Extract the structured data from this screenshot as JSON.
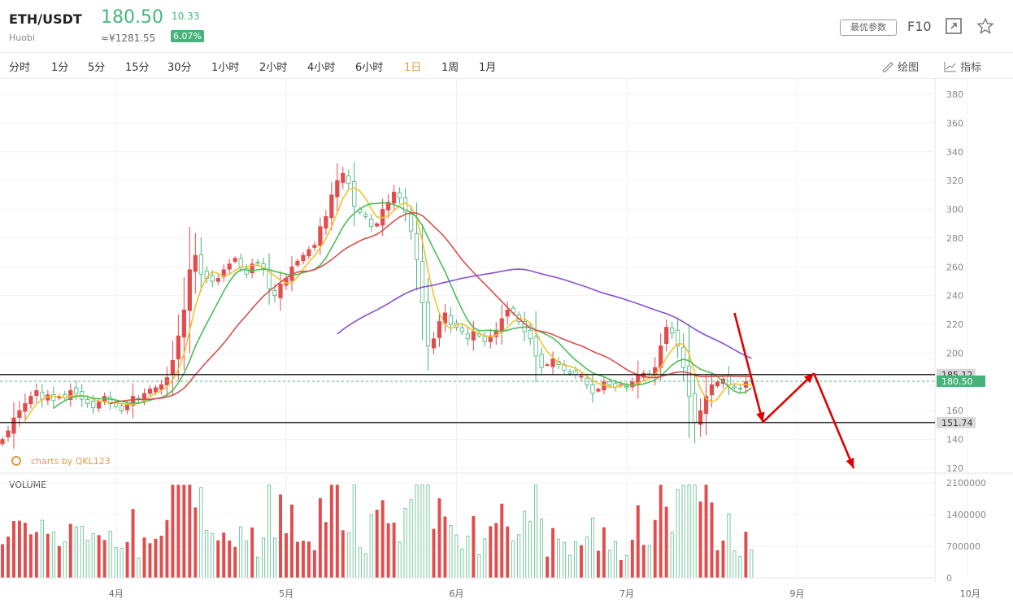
{
  "header": {
    "symbol": "ETH/USDT",
    "exchange": "Huobi",
    "price": "180.50",
    "cny_price": "≈¥1281.55",
    "change": "10.33",
    "change_pct": "6.07%",
    "param_button": "最优参数",
    "f10": "F10"
  },
  "tabs": [
    "分时",
    "1分",
    "5分",
    "15分",
    "30分",
    "1小时",
    "2小时",
    "4小时",
    "6小时",
    "1日",
    "1周",
    "1月"
  ],
  "active_tab": "1日",
  "tools": {
    "draw": "绘图",
    "indicator": "指标"
  },
  "colors": {
    "up": "#e24c4c",
    "down": "#43b37a",
    "ma5": "#f2c230",
    "ma10": "#4cbf5a",
    "ma20": "#d94f4f",
    "ma60": "#8a4fd0",
    "arrow": "#e00000"
  },
  "chart_data": {
    "type": "candlestick",
    "watermark": "charts by QKL123",
    "price_axis": {
      "min": 120,
      "max": 380,
      "ticks": [
        120,
        140,
        160,
        180,
        200,
        220,
        240,
        260,
        280,
        300,
        320,
        340,
        360,
        380
      ]
    },
    "price_labels": [
      "120",
      "140",
      "160",
      "180",
      "200",
      "220",
      "240",
      "260",
      "280",
      "300",
      "320",
      "340",
      "360",
      "380"
    ],
    "x_axis": {
      "labels": [
        "4月",
        "5月",
        "6月",
        "7月",
        "9月",
        "10月"
      ],
      "label_days": [
        12,
        42,
        72,
        102,
        132,
        162
      ]
    },
    "levels": [
      185.12,
      151.74
    ],
    "level_labels": [
      "185.12",
      "151.74"
    ],
    "current_price": 180.5,
    "current_label": "180.50",
    "closes": [
      140,
      146,
      155,
      160,
      165,
      170,
      174,
      168,
      171,
      167,
      170,
      169,
      174,
      172,
      168,
      165,
      162,
      166,
      170,
      165,
      163,
      160,
      164,
      170,
      168,
      172,
      175,
      176,
      178,
      183,
      195,
      212,
      230,
      258,
      268,
      255,
      252,
      250,
      252,
      258,
      262,
      266,
      260,
      255,
      262,
      263,
      258,
      245,
      240,
      248,
      252,
      260,
      264,
      268,
      272,
      275,
      288,
      295,
      310,
      320,
      325,
      318,
      302,
      298,
      295,
      288,
      290,
      300,
      305,
      312,
      308,
      298,
      285,
      265,
      235,
      205,
      210,
      222,
      228,
      220,
      218,
      215,
      210,
      215,
      212,
      208,
      212,
      216,
      224,
      230,
      228,
      222,
      215,
      210,
      198,
      190,
      192,
      196,
      192,
      188,
      186,
      185,
      184,
      178,
      172,
      175,
      180,
      178,
      176,
      178,
      176,
      180,
      185,
      186,
      185,
      190,
      205,
      218,
      214,
      205,
      190,
      170,
      152,
      160,
      170,
      178,
      180,
      182,
      178,
      176,
      175,
      180,
      180
    ],
    "volume_axis": {
      "min": 0,
      "max": 2100000,
      "ticks": [
        0,
        700000,
        1400000,
        2100000
      ]
    },
    "volume_labels": [
      "0",
      "700000",
      "1400000",
      "2100000"
    ],
    "volume_title": "VOLUME"
  }
}
